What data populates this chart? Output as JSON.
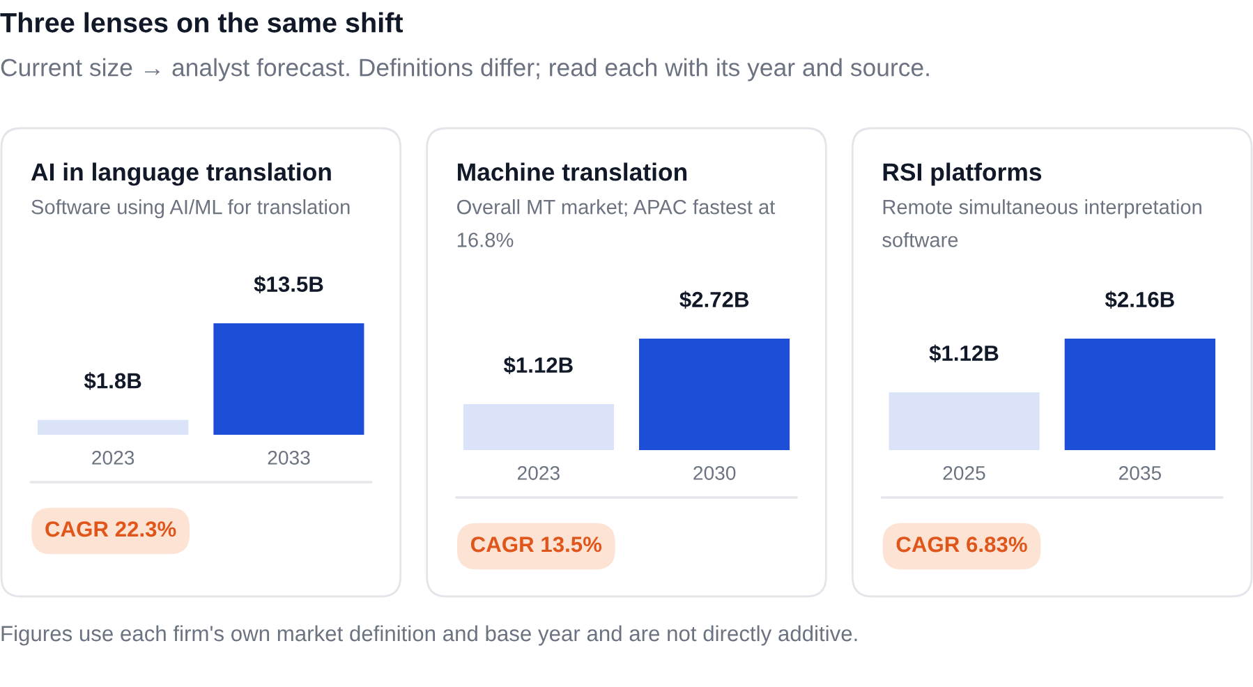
{
  "chart_data": [
    {
      "type": "other",
      "title": "Three lenses on the same shift",
      "subtitle": "Current size → analyst forecast. Definitions differ; read each with its year and source.",
      "annotations": [
        "Figures use each firm's own market definition and base year and are not directly additive."
      ]
    },
    {
      "type": "bar",
      "title": "AI in language translation",
      "subtitle": "Software using AI/ML for translation",
      "categories": [
        "2023",
        "2033"
      ],
      "values": [
        1.8,
        13.5
      ],
      "colors": [
        "#dbe3f8",
        "#1d4ed8"
      ],
      "value_labels": [
        "$1.8B",
        "$13.5B"
      ],
      "annotations": [
        "CAGR 22.3%"
      ],
      "tick_labels": "x"
    },
    {
      "type": "bar",
      "title": "Machine translation",
      "subtitle": "Overall MT market; APAC fastest at 16.8%",
      "categories": [
        "2023",
        "2030"
      ],
      "values": [
        1.12,
        2.72
      ],
      "colors": [
        "#dbe3f8",
        "#1d4ed8"
      ],
      "value_labels": [
        "$1.12B",
        "$2.72B"
      ],
      "annotations": [
        "CAGR 13.5%"
      ],
      "tick_labels": "x"
    },
    {
      "type": "bar",
      "title": "RSI platforms",
      "subtitle": "Remote simultaneous interpretation software",
      "categories": [
        "2025",
        "2035"
      ],
      "values": [
        1.12,
        2.16
      ],
      "colors": [
        "#dbe3f8",
        "#1d4ed8"
      ],
      "value_labels": [
        "$1.12B",
        "$2.16B"
      ],
      "annotations": [
        "CAGR 6.83%"
      ],
      "tick_labels": "x"
    }
  ]
}
